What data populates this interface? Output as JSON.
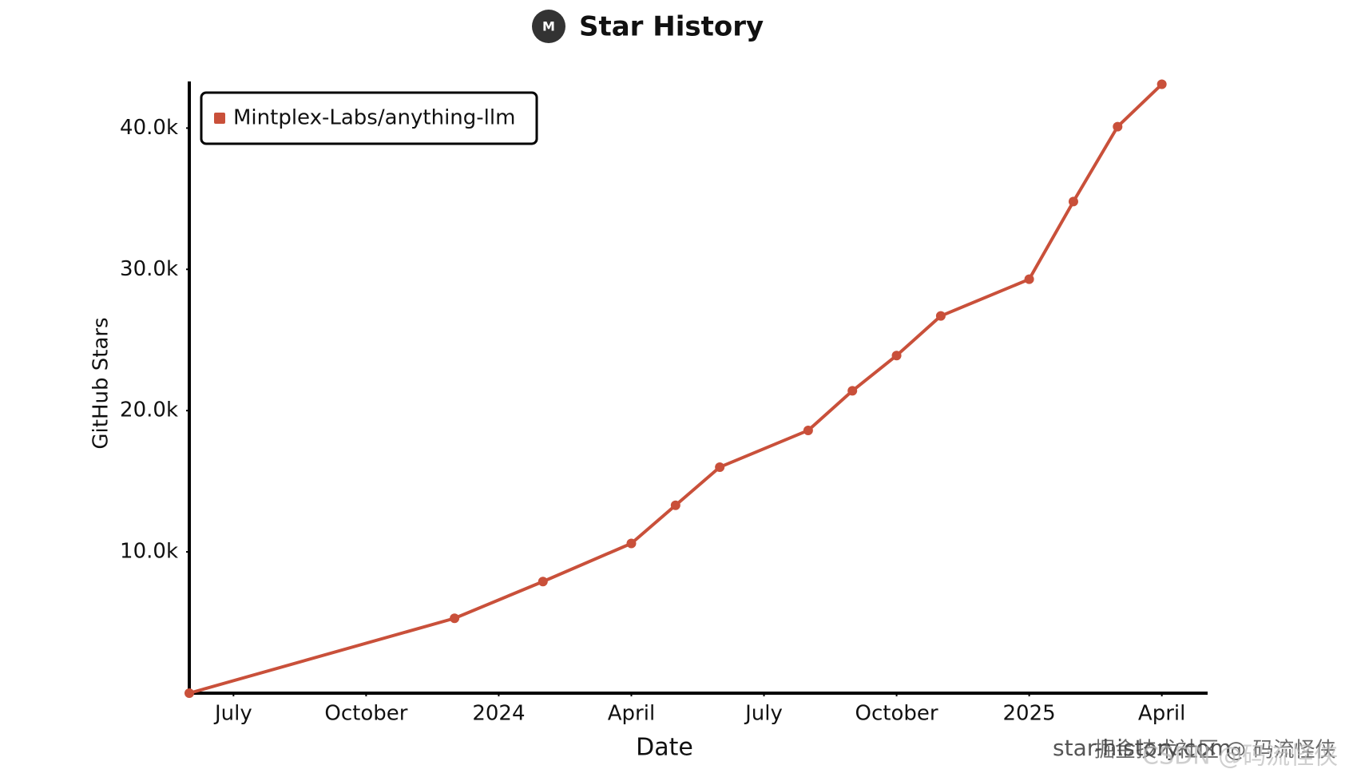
{
  "chart_data": {
    "type": "line",
    "title": "Star History",
    "xlabel": "Date",
    "ylabel": "GitHub Stars",
    "x": [
      "2023-06",
      "2023-12",
      "2024-02",
      "2024-04",
      "2024-05",
      "2024-06",
      "2024-08",
      "2024-09",
      "2024-10",
      "2024-11",
      "2025-01",
      "2025-02",
      "2025-03",
      "2025-04"
    ],
    "series": [
      {
        "name": "Mintplex-Labs/anything-llm",
        "color": "#c9503a",
        "values": [
          0,
          5300,
          7900,
          10600,
          13300,
          16000,
          18600,
          21400,
          23900,
          26700,
          29300,
          34800,
          40100,
          43100
        ]
      }
    ],
    "xlim": [
      "2023-06",
      "2025-05"
    ],
    "xticks": [
      {
        "value": "2023-07",
        "label": "July"
      },
      {
        "value": "2023-10",
        "label": "October"
      },
      {
        "value": "2024-01",
        "label": "2024"
      },
      {
        "value": "2024-04",
        "label": "April"
      },
      {
        "value": "2024-07",
        "label": "July"
      },
      {
        "value": "2024-10",
        "label": "October"
      },
      {
        "value": "2025-01",
        "label": "2025"
      },
      {
        "value": "2025-04",
        "label": "April"
      }
    ],
    "ylim": [
      0,
      43300
    ],
    "yticks": [
      {
        "value": 10000,
        "label": "10.0k"
      },
      {
        "value": 20000,
        "label": "20.0k"
      },
      {
        "value": 30000,
        "label": "30.0k"
      },
      {
        "value": 40000,
        "label": "40.0k"
      }
    ],
    "legend": "top-left",
    "watermarks": [
      "star-history.com",
      "掘金技术社区 @ 码流怪侠",
      "CSDN @码流怪侠"
    ]
  }
}
